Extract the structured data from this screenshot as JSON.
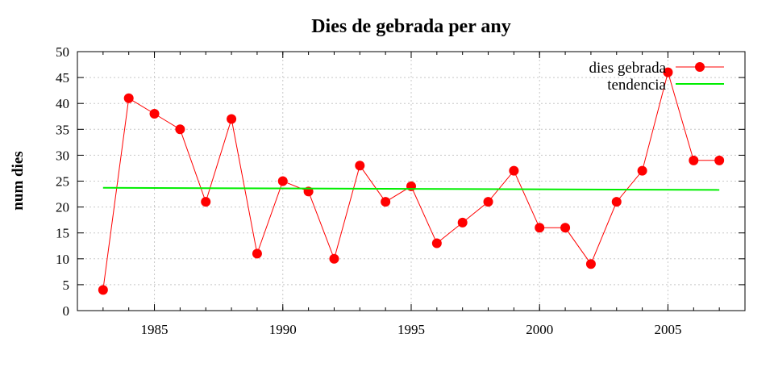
{
  "chart_data": {
    "type": "line",
    "title": "Dies de gebrada per any",
    "xlabel": "",
    "ylabel": "num dies",
    "xlim": [
      1982,
      2008
    ],
    "ylim": [
      0,
      50
    ],
    "x_ticks": [
      1985,
      1990,
      1995,
      2000,
      2005
    ],
    "y_ticks": [
      0,
      5,
      10,
      15,
      20,
      25,
      30,
      35,
      40,
      45,
      50
    ],
    "grid": true,
    "legend_position": "top-right",
    "series": [
      {
        "name": "dies gebrada",
        "color": "#ff0000",
        "marker": "circle",
        "x": [
          1983,
          1984,
          1985,
          1986,
          1987,
          1988,
          1989,
          1990,
          1991,
          1992,
          1993,
          1994,
          1995,
          1996,
          1997,
          1998,
          1999,
          2000,
          2001,
          2002,
          2003,
          2004,
          2005,
          2006,
          2007
        ],
        "y": [
          4,
          41,
          38,
          35,
          21,
          37,
          11,
          25,
          23,
          10,
          28,
          21,
          24,
          13,
          17,
          21,
          27,
          16,
          16,
          9,
          21,
          27,
          46,
          29,
          29
        ]
      },
      {
        "name": "tendencia",
        "color": "#00ee00",
        "marker": "none",
        "x": [
          1983,
          2007
        ],
        "y": [
          23.7,
          23.3
        ]
      }
    ]
  }
}
